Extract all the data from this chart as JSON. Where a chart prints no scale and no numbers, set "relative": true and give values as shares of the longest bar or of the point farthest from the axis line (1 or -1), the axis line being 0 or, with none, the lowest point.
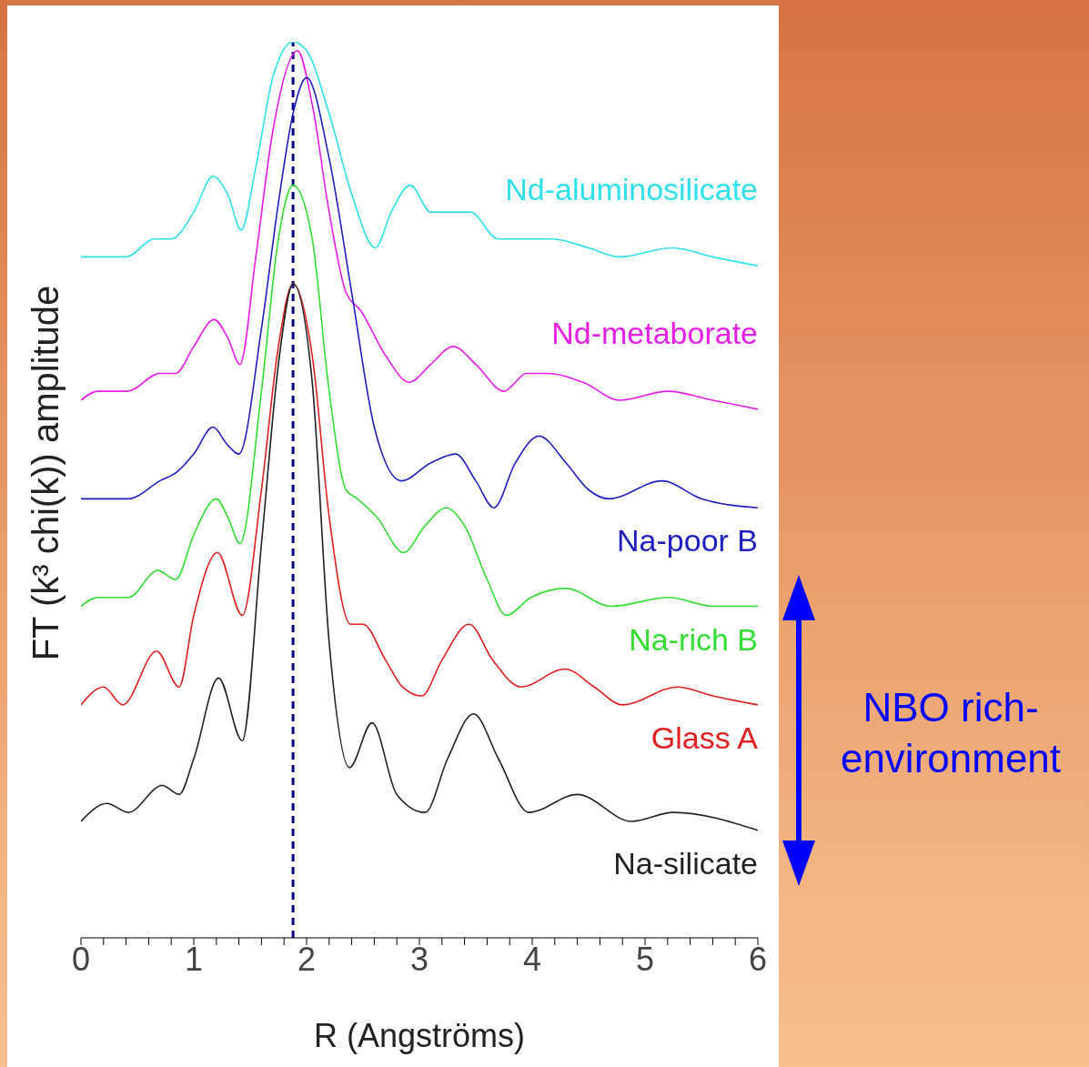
{
  "chart_data": {
    "type": "line",
    "relative": true,
    "xlabel": "R (Angströms)",
    "ylabel": "FT (k³ chi(k)) amplitude",
    "marker": "none",
    "xlim": [
      0,
      6
    ],
    "xticks": [
      0,
      {
        "value": 0.2,
        "label": null
      },
      {
        "value": 0.4,
        "label": null
      },
      {
        "value": 0.6,
        "label": null
      },
      {
        "value": 0.8,
        "label": null
      },
      1,
      {
        "value": 1.2,
        "label": null
      },
      {
        "value": 1.4,
        "label": null
      },
      {
        "value": 1.6,
        "label": null
      },
      {
        "value": 1.8,
        "label": null
      },
      2,
      {
        "value": 2.2,
        "label": null
      },
      {
        "value": 2.4,
        "label": null
      },
      {
        "value": 2.6,
        "label": null
      },
      {
        "value": 2.8,
        "label": null
      },
      3,
      {
        "value": 3.2,
        "label": null
      },
      {
        "value": 3.4,
        "label": null
      },
      {
        "value": 3.6,
        "label": null
      },
      {
        "value": 3.8,
        "label": null
      },
      4,
      {
        "value": 4.2,
        "label": null
      },
      {
        "value": 4.4,
        "label": null
      },
      {
        "value": 4.6,
        "label": null
      },
      {
        "value": 4.8,
        "label": null
      },
      5,
      {
        "value": 5.2,
        "label": null
      },
      {
        "value": 5.4,
        "label": null
      },
      {
        "value": 5.6,
        "label": null
      },
      {
        "value": 5.8,
        "label": null
      },
      6
    ],
    "series": [
      {
        "name": "Nd-aluminosilicate",
        "color": "#2fe0ea",
        "x": [
          0,
          0.2,
          0.4,
          0.65,
          0.8,
          1.0,
          1.17,
          1.3,
          1.42,
          1.55,
          1.7,
          1.88,
          2.0,
          2.2,
          2.4,
          2.61,
          2.75,
          2.92,
          3.1,
          3.26,
          3.45,
          3.7,
          3.88,
          4.18,
          4.5,
          4.77,
          5.24,
          5.6,
          6.0
        ],
        "values": [
          0.76,
          0.76,
          0.76,
          0.78,
          0.78,
          0.81,
          0.85,
          0.83,
          0.79,
          0.86,
          0.96,
          1.0,
          0.99,
          0.92,
          0.83,
          0.77,
          0.81,
          0.84,
          0.81,
          0.81,
          0.81,
          0.78,
          0.78,
          0.78,
          0.77,
          0.76,
          0.77,
          0.76,
          0.75
        ]
      },
      {
        "name": "Nd-metaborate",
        "color": "#e61ee6",
        "x": [
          0,
          0.15,
          0.41,
          0.7,
          0.84,
          1.0,
          1.18,
          1.3,
          1.41,
          1.55,
          1.7,
          1.92,
          2.05,
          2.2,
          2.35,
          2.48,
          2.7,
          2.91,
          3.1,
          3.3,
          3.5,
          3.75,
          3.95,
          4.13,
          4.45,
          4.78,
          5.2,
          5.6,
          6.0
        ],
        "values": [
          0.6,
          0.61,
          0.61,
          0.63,
          0.63,
          0.66,
          0.69,
          0.67,
          0.64,
          0.76,
          0.9,
          0.99,
          0.93,
          0.81,
          0.72,
          0.7,
          0.65,
          0.62,
          0.64,
          0.66,
          0.64,
          0.61,
          0.63,
          0.63,
          0.62,
          0.6,
          0.61,
          0.6,
          0.59
        ]
      },
      {
        "name": "Na-poor B",
        "color": "#2020c0",
        "x": [
          0,
          0.15,
          0.42,
          0.7,
          0.85,
          1.0,
          1.17,
          1.3,
          1.4,
          1.6,
          1.75,
          1.88,
          2.0,
          2.2,
          2.4,
          2.6,
          2.84,
          3.1,
          3.32,
          3.5,
          3.66,
          3.85,
          4.06,
          4.3,
          4.5,
          4.68,
          5.15,
          5.5,
          6.0
        ],
        "values": [
          0.49,
          0.49,
          0.49,
          0.51,
          0.52,
          0.54,
          0.57,
          0.55,
          0.54,
          0.68,
          0.82,
          0.92,
          0.96,
          0.87,
          0.72,
          0.57,
          0.51,
          0.53,
          0.54,
          0.51,
          0.48,
          0.53,
          0.56,
          0.53,
          0.5,
          0.49,
          0.51,
          0.49,
          0.48
        ]
      },
      {
        "name": "Na-rich B",
        "color": "#33dd33",
        "x": [
          0,
          0.15,
          0.42,
          0.68,
          0.84,
          1.0,
          1.2,
          1.3,
          1.41,
          1.6,
          1.75,
          1.88,
          2.05,
          2.2,
          2.35,
          2.45,
          2.62,
          2.86,
          3.05,
          3.24,
          3.4,
          3.6,
          3.77,
          3.99,
          4.3,
          4.7,
          5.21,
          5.6,
          6.0
        ],
        "values": [
          0.37,
          0.38,
          0.38,
          0.41,
          0.4,
          0.45,
          0.49,
          0.47,
          0.44,
          0.61,
          0.78,
          0.84,
          0.78,
          0.61,
          0.5,
          0.49,
          0.47,
          0.43,
          0.46,
          0.48,
          0.46,
          0.4,
          0.36,
          0.38,
          0.39,
          0.37,
          0.38,
          0.37,
          0.37
        ]
      },
      {
        "name": "Glass A",
        "color": "#e02020",
        "x": [
          0,
          0.2,
          0.37,
          0.67,
          0.87,
          1.0,
          1.21,
          1.43,
          1.6,
          1.75,
          1.88,
          2.05,
          2.2,
          2.39,
          2.5,
          2.7,
          2.85,
          3.02,
          3.2,
          3.44,
          3.65,
          3.9,
          4.29,
          4.55,
          4.8,
          5.29,
          5.6,
          6.0
        ],
        "values": [
          0.26,
          0.28,
          0.26,
          0.32,
          0.28,
          0.36,
          0.43,
          0.36,
          0.5,
          0.66,
          0.73,
          0.65,
          0.47,
          0.35,
          0.35,
          0.31,
          0.28,
          0.27,
          0.31,
          0.35,
          0.31,
          0.28,
          0.3,
          0.28,
          0.26,
          0.28,
          0.27,
          0.26
        ]
      },
      {
        "name": "Na-silicate",
        "color": "#222222",
        "x": [
          0,
          0.23,
          0.42,
          0.72,
          0.87,
          1.0,
          1.22,
          1.43,
          1.6,
          1.75,
          1.88,
          2.05,
          2.2,
          2.38,
          2.58,
          2.8,
          3.05,
          3.25,
          3.48,
          3.7,
          3.97,
          4.4,
          4.88,
          5.25,
          6.0
        ],
        "values": [
          0.13,
          0.15,
          0.14,
          0.17,
          0.16,
          0.2,
          0.29,
          0.22,
          0.44,
          0.64,
          0.73,
          0.62,
          0.33,
          0.19,
          0.24,
          0.16,
          0.14,
          0.2,
          0.25,
          0.2,
          0.14,
          0.16,
          0.13,
          0.14,
          0.12
        ]
      }
    ],
    "ref_lines": [
      {
        "axis": "x",
        "value": 1.88,
        "color": "#000080",
        "line_style": "dashed"
      }
    ],
    "annotations": [
      "NBO rich-environment"
    ]
  }
}
